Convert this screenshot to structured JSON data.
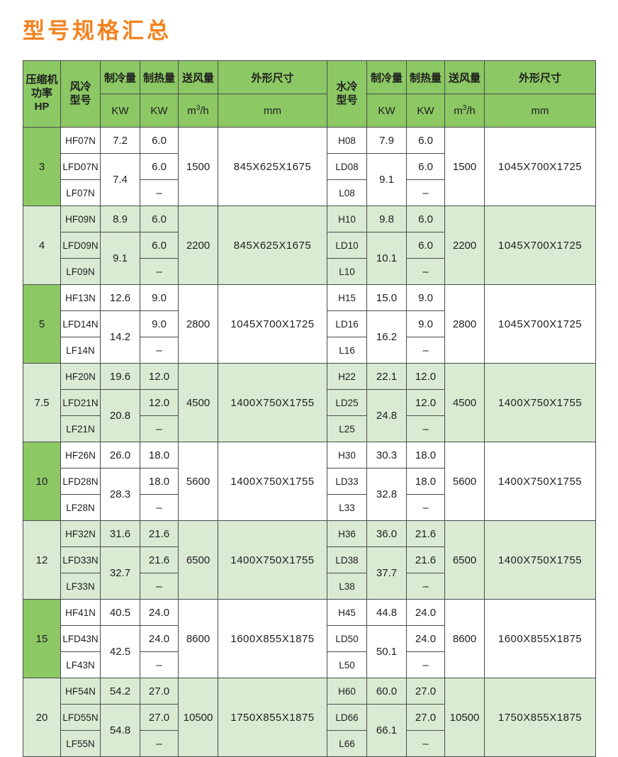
{
  "page": {
    "title": "型号规格汇总"
  },
  "colors": {
    "title_orange": "#F3821E",
    "header_green": "#8CC864",
    "alt_group_green": "#D9EBD3",
    "hp_column_green": "#8CC864",
    "border_gray": "#4A4B4D"
  },
  "table": {
    "header": {
      "hp_label": "压缩机\n功率\nHP",
      "air_model_label": "风冷\n型号",
      "water_model_label": "水冷\n型号",
      "cooling_label": "制冷量",
      "heating_label": "制热量",
      "airflow_label": "送风量",
      "dimensions_label": "外形尺寸",
      "kw_unit": "KW",
      "airflow_unit_base": "m",
      "airflow_unit_sup": "3",
      "airflow_unit_rest": "/h",
      "mm_unit": "mm"
    },
    "groups": [
      {
        "hp": "3",
        "air": {
          "models": [
            "HF07N",
            "LFD07N",
            "LF07N"
          ],
          "cooling_row1": "7.2",
          "cooling_rows23": "7.4",
          "heating": [
            "6.0",
            "6.0",
            "–"
          ],
          "airflow": "1500",
          "dimensions": "845X625X1675"
        },
        "water": {
          "models": [
            "H08",
            "LD08",
            "L08"
          ],
          "cooling_row1": "7.9",
          "cooling_rows23": "9.1",
          "heating": [
            "6.0",
            "6.0",
            "–"
          ],
          "airflow": "1500",
          "dimensions": "1045X700X1725"
        }
      },
      {
        "hp": "4",
        "air": {
          "models": [
            "HF09N",
            "LFD09N",
            "LF09N"
          ],
          "cooling_row1": "8.9",
          "cooling_rows23": "9.1",
          "heating": [
            "6.0",
            "6.0",
            "–"
          ],
          "airflow": "2200",
          "dimensions": "845X625X1675"
        },
        "water": {
          "models": [
            "H10",
            "LD10",
            "L10"
          ],
          "cooling_row1": "9.8",
          "cooling_rows23": "10.1",
          "heating": [
            "6.0",
            "6.0",
            "–"
          ],
          "airflow": "2200",
          "dimensions": "1045X700X1725"
        }
      },
      {
        "hp": "5",
        "air": {
          "models": [
            "HF13N",
            "LFD14N",
            "LF14N"
          ],
          "cooling_row1": "12.6",
          "cooling_rows23": "14.2",
          "heating": [
            "9.0",
            "9.0",
            "–"
          ],
          "airflow": "2800",
          "dimensions": "1045X700X1725"
        },
        "water": {
          "models": [
            "H15",
            "LD16",
            "L16"
          ],
          "cooling_row1": "15.0",
          "cooling_rows23": "16.2",
          "heating": [
            "9.0",
            "9.0",
            "–"
          ],
          "airflow": "2800",
          "dimensions": "1045X700X1725"
        }
      },
      {
        "hp": "7.5",
        "air": {
          "models": [
            "HF20N",
            "LFD21N",
            "LF21N"
          ],
          "cooling_row1": "19.6",
          "cooling_rows23": "20.8",
          "heating": [
            "12.0",
            "12.0",
            "–"
          ],
          "airflow": "4500",
          "dimensions": "1400X750X1755"
        },
        "water": {
          "models": [
            "H22",
            "LD25",
            "L25"
          ],
          "cooling_row1": "22.1",
          "cooling_rows23": "24.8",
          "heating": [
            "12.0",
            "12.0",
            "–"
          ],
          "airflow": "4500",
          "dimensions": "1400X750X1755"
        }
      },
      {
        "hp": "10",
        "air": {
          "models": [
            "HF26N",
            "LFD28N",
            "LF28N"
          ],
          "cooling_row1": "26.0",
          "cooling_rows23": "28.3",
          "heating": [
            "18.0",
            "18.0",
            "–"
          ],
          "airflow": "5600",
          "dimensions": "1400X750X1755"
        },
        "water": {
          "models": [
            "H30",
            "LD33",
            "L33"
          ],
          "cooling_row1": "30.3",
          "cooling_rows23": "32.8",
          "heating": [
            "18.0",
            "18.0",
            "–"
          ],
          "airflow": "5600",
          "dimensions": "1400X750X1755"
        }
      },
      {
        "hp": "12",
        "air": {
          "models": [
            "HF32N",
            "LFD33N",
            "LF33N"
          ],
          "cooling_row1": "31.6",
          "cooling_rows23": "32.7",
          "heating": [
            "21.6",
            "21.6",
            "–"
          ],
          "airflow": "6500",
          "dimensions": "1400X750X1755"
        },
        "water": {
          "models": [
            "H36",
            "LD38",
            "L38"
          ],
          "cooling_row1": "36.0",
          "cooling_rows23": "37.7",
          "heating": [
            "21.6",
            "21.6",
            "–"
          ],
          "airflow": "6500",
          "dimensions": "1400X750X1755"
        }
      },
      {
        "hp": "15",
        "air": {
          "models": [
            "HF41N",
            "LFD43N",
            "LF43N"
          ],
          "cooling_row1": "40.5",
          "cooling_rows23": "42.5",
          "heating": [
            "24.0",
            "24.0",
            "–"
          ],
          "airflow": "8600",
          "dimensions": "1600X855X1875"
        },
        "water": {
          "models": [
            "H45",
            "LD50",
            "L50"
          ],
          "cooling_row1": "44.8",
          "cooling_rows23": "50.1",
          "heating": [
            "24.0",
            "24.0",
            "–"
          ],
          "airflow": "8600",
          "dimensions": "1600X855X1875"
        }
      },
      {
        "hp": "20",
        "air": {
          "models": [
            "HF54N",
            "LFD55N",
            "LF55N"
          ],
          "cooling_row1": "54.2",
          "cooling_rows23": "54.8",
          "heating": [
            "27.0",
            "27.0",
            "–"
          ],
          "airflow": "10500",
          "dimensions": "1750X855X1875"
        },
        "water": {
          "models": [
            "H60",
            "LD66",
            "L66"
          ],
          "cooling_row1": "60.0",
          "cooling_rows23": "66.1",
          "heating": [
            "27.0",
            "27.0",
            "–"
          ],
          "airflow": "10500",
          "dimensions": "1750X855X1875"
        }
      }
    ]
  }
}
